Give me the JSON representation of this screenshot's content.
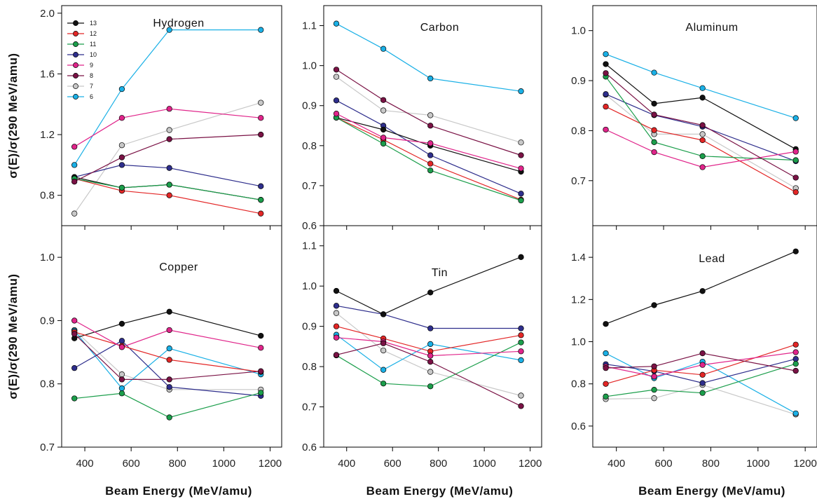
{
  "ylabel": "σ(E)/σ(290 MeV/amu)",
  "xlabel": "Beam Energy (MeV/amu)",
  "x_ticks": [
    "400",
    "600",
    "800",
    "1000",
    "1200"
  ],
  "legend": {
    "panel": "Hydrogen",
    "entries": [
      {
        "label": "13",
        "color": "#111111"
      },
      {
        "label": "12",
        "color": "#e32626"
      },
      {
        "label": "11",
        "color": "#1b9e4b"
      },
      {
        "label": "10",
        "color": "#2e2e8c"
      },
      {
        "label": "9",
        "color": "#e0248a"
      },
      {
        "label": "8",
        "color": "#7a1245"
      },
      {
        "label": "7",
        "color": "#c8c8c8"
      },
      {
        "label": "6",
        "color": "#1ab0e6"
      }
    ]
  },
  "chart_data": [
    {
      "type": "line",
      "title": "Hydrogen",
      "xlabel": "",
      "ylabel": "σ(E)/σ(290 MeV/amu)",
      "x": [
        355,
        560,
        765,
        1160
      ],
      "xlim": [
        300,
        1250
      ],
      "ylim": [
        0.6,
        2.05
      ],
      "yticks": [
        "0.8",
        "1.2",
        "1.6",
        "2.0"
      ],
      "series": [
        {
          "name": "13",
          "values": [
            0.92,
            0.85,
            0.87,
            0.77
          ]
        },
        {
          "name": "12",
          "values": [
            0.91,
            0.83,
            0.8,
            0.68
          ]
        },
        {
          "name": "11",
          "values": [
            0.91,
            0.85,
            0.87,
            0.77
          ]
        },
        {
          "name": "10",
          "values": [
            0.92,
            1.0,
            0.98,
            0.86
          ]
        },
        {
          "name": "9",
          "values": [
            1.12,
            1.31,
            1.37,
            1.31
          ]
        },
        {
          "name": "8",
          "values": [
            0.89,
            1.05,
            1.17,
            1.2
          ]
        },
        {
          "name": "7",
          "values": [
            0.68,
            1.13,
            1.23,
            1.41
          ]
        },
        {
          "name": "6",
          "values": [
            1.0,
            1.5,
            1.89,
            1.89
          ]
        }
      ]
    },
    {
      "type": "line",
      "title": "Carbon",
      "xlabel": "",
      "ylabel": "",
      "x": [
        355,
        560,
        765,
        1160
      ],
      "xlim": [
        300,
        1250
      ],
      "ylim": [
        0.6,
        1.15
      ],
      "yticks": [
        "0.6",
        "0.7",
        "0.8",
        "0.9",
        "1.0",
        "1.1"
      ],
      "series": [
        {
          "name": "13",
          "values": [
            0.87,
            0.84,
            0.8,
            0.735
          ]
        },
        {
          "name": "12",
          "values": [
            0.87,
            0.815,
            0.755,
            0.665
          ]
        },
        {
          "name": "11",
          "values": [
            0.87,
            0.805,
            0.738,
            0.663
          ]
        },
        {
          "name": "10",
          "values": [
            0.913,
            0.85,
            0.776,
            0.68
          ]
        },
        {
          "name": "9",
          "values": [
            0.88,
            0.82,
            0.806,
            0.743
          ]
        },
        {
          "name": "8",
          "values": [
            0.99,
            0.914,
            0.85,
            0.776
          ]
        },
        {
          "name": "7",
          "values": [
            0.972,
            0.888,
            0.876,
            0.808
          ]
        },
        {
          "name": "6",
          "values": [
            1.105,
            1.042,
            0.968,
            0.936
          ]
        }
      ]
    },
    {
      "type": "line",
      "title": "Aluminum",
      "xlabel": "",
      "ylabel": "",
      "x": [
        355,
        560,
        765,
        1160
      ],
      "xlim": [
        300,
        1250
      ],
      "ylim": [
        0.61,
        1.05
      ],
      "yticks": [
        "0.7",
        "0.8",
        "0.9",
        "1.0"
      ],
      "series": [
        {
          "name": "13",
          "values": [
            0.933,
            0.854,
            0.866,
            0.763
          ]
        },
        {
          "name": "12",
          "values": [
            0.848,
            0.801,
            0.781,
            0.677
          ]
        },
        {
          "name": "11",
          "values": [
            0.908,
            0.777,
            0.749,
            0.741
          ]
        },
        {
          "name": "10",
          "values": [
            0.873,
            0.831,
            0.808,
            0.739
          ]
        },
        {
          "name": "9",
          "values": [
            0.802,
            0.757,
            0.727,
            0.758
          ]
        },
        {
          "name": "8",
          "values": [
            0.915,
            0.832,
            0.811,
            0.706
          ]
        },
        {
          "name": "7",
          "values": [
            0.872,
            0.793,
            0.793,
            0.685
          ]
        },
        {
          "name": "6",
          "values": [
            0.953,
            0.916,
            0.885,
            0.825
          ]
        }
      ]
    },
    {
      "type": "line",
      "title": "Copper",
      "xlabel": "Beam Energy (MeV/amu)",
      "ylabel": "σ(E)/σ(290 MeV/amu)",
      "x": [
        355,
        560,
        765,
        1160
      ],
      "xlim": [
        300,
        1250
      ],
      "ylim": [
        0.7,
        1.05
      ],
      "yticks": [
        "0.7",
        "0.8",
        "0.9",
        "1.0"
      ],
      "series": [
        {
          "name": "13",
          "values": [
            0.872,
            0.895,
            0.914,
            0.876
          ]
        },
        {
          "name": "12",
          "values": [
            0.882,
            0.86,
            0.838,
            0.819
          ]
        },
        {
          "name": "11",
          "values": [
            0.777,
            0.785,
            0.747,
            0.786
          ]
        },
        {
          "name": "10",
          "values": [
            0.825,
            0.868,
            0.795,
            0.781
          ]
        },
        {
          "name": "9",
          "values": [
            0.9,
            0.858,
            0.885,
            0.857
          ]
        },
        {
          "name": "8",
          "values": [
            0.879,
            0.807,
            0.807,
            0.82
          ]
        },
        {
          "name": "7",
          "values": [
            0.885,
            0.815,
            0.791,
            0.791
          ]
        },
        {
          "name": "6",
          "values": [
            0.884,
            0.793,
            0.856,
            0.815
          ]
        }
      ]
    },
    {
      "type": "line",
      "title": "Tin",
      "xlabel": "Beam Energy (MeV/amu)",
      "ylabel": "",
      "x": [
        355,
        560,
        765,
        1160
      ],
      "xlim": [
        300,
        1250
      ],
      "ylim": [
        0.6,
        1.15
      ],
      "yticks": [
        "0.6",
        "0.7",
        "0.8",
        "0.9",
        "1.0",
        "1.1"
      ],
      "series": [
        {
          "name": "13",
          "values": [
            0.988,
            0.93,
            0.984,
            1.072
          ]
        },
        {
          "name": "12",
          "values": [
            0.9,
            0.87,
            0.838,
            0.878
          ]
        },
        {
          "name": "11",
          "values": [
            0.828,
            0.758,
            0.751,
            0.86
          ]
        },
        {
          "name": "10",
          "values": [
            0.951,
            0.93,
            0.895,
            0.895
          ]
        },
        {
          "name": "9",
          "values": [
            0.872,
            0.862,
            0.827,
            0.838
          ]
        },
        {
          "name": "8",
          "values": [
            0.829,
            0.858,
            0.812,
            0.702
          ]
        },
        {
          "name": "7",
          "values": [
            0.933,
            0.84,
            0.787,
            0.728
          ]
        },
        {
          "name": "6",
          "values": [
            0.879,
            0.792,
            0.856,
            0.816
          ]
        }
      ]
    },
    {
      "type": "line",
      "title": "Lead",
      "xlabel": "Beam Energy (MeV/amu)",
      "ylabel": "",
      "x": [
        355,
        560,
        765,
        1160
      ],
      "xlim": [
        300,
        1250
      ],
      "ylim": [
        0.5,
        1.55
      ],
      "yticks": [
        "0.6",
        "0.8",
        "1.0",
        "1.2",
        "1.4"
      ],
      "series": [
        {
          "name": "13",
          "values": [
            1.084,
            1.173,
            1.24,
            1.428
          ]
        },
        {
          "name": "12",
          "values": [
            0.8,
            0.865,
            0.843,
            0.986
          ]
        },
        {
          "name": "11",
          "values": [
            0.74,
            0.772,
            0.757,
            0.895
          ]
        },
        {
          "name": "10",
          "values": [
            0.893,
            0.86,
            0.804,
            0.918
          ]
        },
        {
          "name": "9",
          "values": [
            0.882,
            0.835,
            0.89,
            0.95
          ]
        },
        {
          "name": "8",
          "values": [
            0.875,
            0.883,
            0.945,
            0.862
          ]
        },
        {
          "name": "7",
          "values": [
            0.728,
            0.732,
            0.795,
            0.655
          ]
        },
        {
          "name": "6",
          "values": [
            0.945,
            0.827,
            0.905,
            0.66
          ]
        }
      ]
    }
  ]
}
